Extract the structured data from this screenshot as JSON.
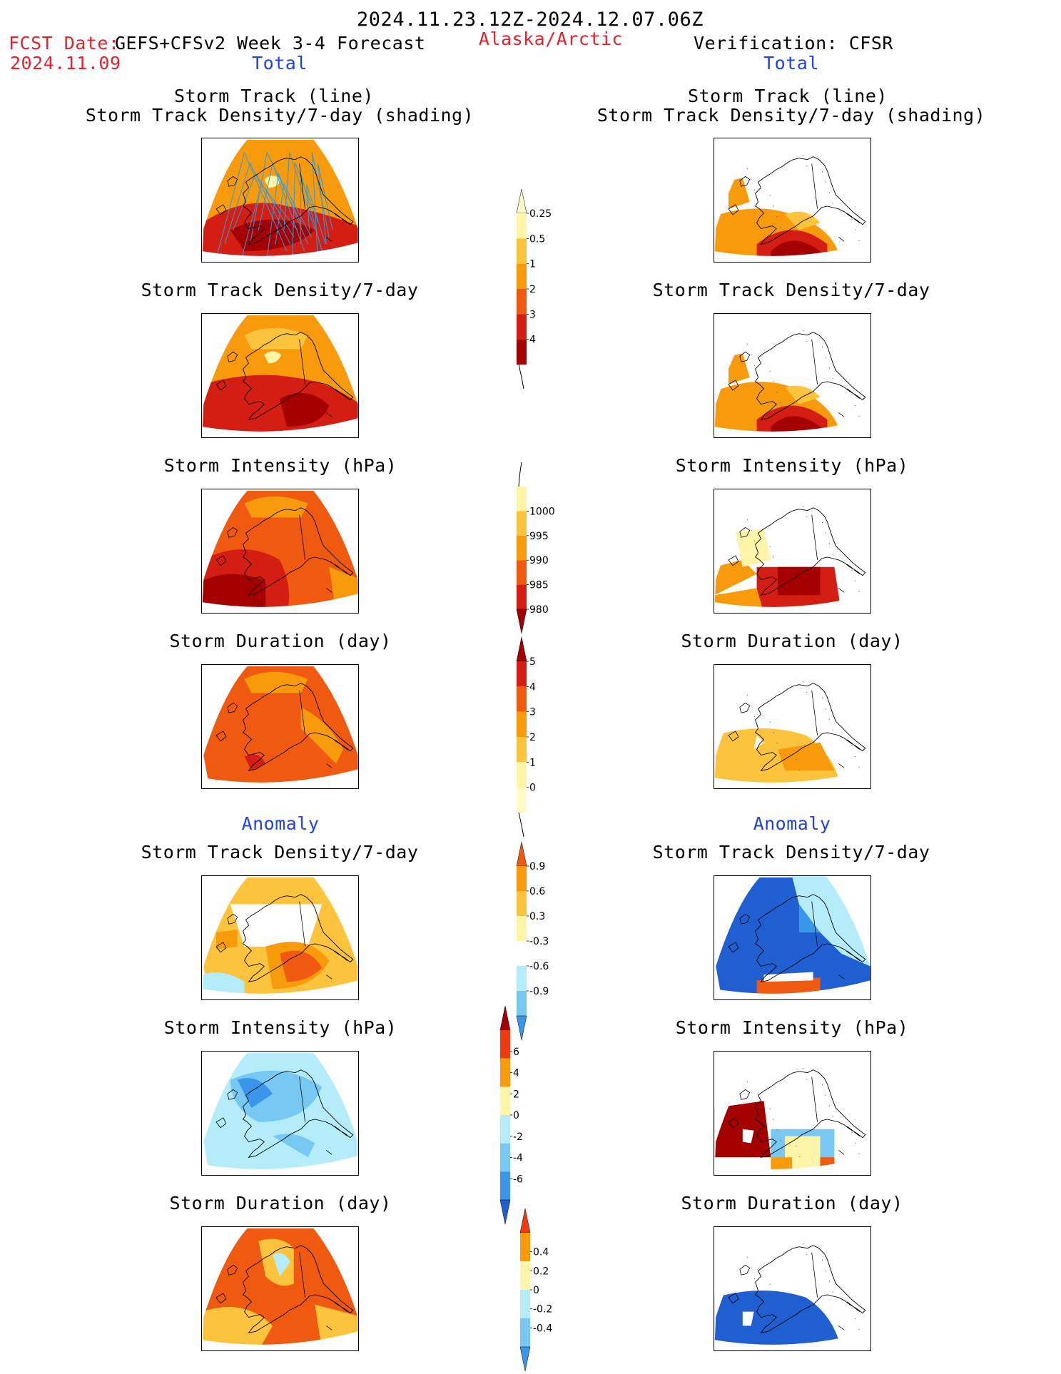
{
  "header": {
    "date_range": "2024.11.23.12Z-2024.12.07.06Z",
    "fcst_label": "FCST Date:",
    "fcst_model": "GEFS+CFSv2 Week 3-4 Forecast",
    "fcst_date": "2024.11.09",
    "region": "Alaska/Arctic",
    "verification": "Verification: CFSR"
  },
  "sections": {
    "total": "Total",
    "anomaly": "Anomaly"
  },
  "panel_titles": {
    "track_line": "Storm Track (line)",
    "track_shading": "Storm Track Density/7-day (shading)",
    "density": "Storm Track Density/7-day",
    "intensity": "Storm Intensity (hPa)",
    "duration": "Storm Duration (day)"
  },
  "colors": {
    "darkred": "#a50000",
    "red": "#d41e14",
    "redorange": "#f05a10",
    "orange": "#f79a0c",
    "lightorange": "#fbc43c",
    "yellow": "#fff5a8",
    "white": "#ffffff",
    "lightblue": "#b4ecfa",
    "skyblue": "#78c8f4",
    "midblue": "#3a96e8",
    "blue": "#1f5fd2",
    "track": "#2f9be0"
  },
  "chart_data": [
    {
      "type": "heatmap",
      "id": "colorbar-track-density-total",
      "levels": [
        0.25,
        0.5,
        1,
        2,
        3,
        4
      ],
      "colors": [
        "#fffcc8",
        "#fff5a8",
        "#fbc43c",
        "#f79a0c",
        "#f05a10",
        "#d41e14",
        "#a50000"
      ],
      "tick_labels": [
        "0.25",
        "0.5",
        "1",
        "2",
        "3",
        "4"
      ]
    },
    {
      "type": "heatmap",
      "id": "colorbar-intensity-total",
      "levels": [
        1000,
        995,
        990,
        985,
        980
      ],
      "colors": [
        "#fff5a8",
        "#fbc43c",
        "#f79a0c",
        "#f05a10",
        "#d41e14",
        "#a50000"
      ],
      "tick_labels": [
        "1000",
        "995",
        "990",
        "985",
        "980"
      ]
    },
    {
      "type": "heatmap",
      "id": "colorbar-duration-total",
      "levels": [
        5,
        4,
        3,
        2,
        1,
        0
      ],
      "colors": [
        "#a50000",
        "#d41e14",
        "#f05a10",
        "#f79a0c",
        "#fbc43c",
        "#fff5a8",
        "#fffcc8"
      ],
      "tick_labels": [
        "5",
        "4",
        "3",
        "2",
        "1",
        "0"
      ]
    },
    {
      "type": "heatmap",
      "id": "colorbar-density-anomaly",
      "levels": [
        0.9,
        0.6,
        0.3,
        -0.3,
        -0.6,
        -0.9
      ],
      "colors": [
        "#f05a10",
        "#f79a0c",
        "#fbc43c",
        "#fff5a8",
        "#ffffff",
        "#b4ecfa",
        "#78c8f4",
        "#3a96e8"
      ],
      "tick_labels": [
        "0.9",
        "0.6",
        "0.3",
        "-0.3",
        "-0.6",
        "-0.9"
      ]
    },
    {
      "type": "heatmap",
      "id": "colorbar-intensity-anomaly",
      "levels": [
        6,
        4,
        2,
        0,
        -2,
        -4,
        -6
      ],
      "colors": [
        "#a50000",
        "#f03a14",
        "#f79a0c",
        "#fff5a8",
        "#b4ecfa",
        "#78c8f4",
        "#3a96e8",
        "#1f5fd2"
      ],
      "tick_labels": [
        "6",
        "4",
        "2",
        "0",
        "-2",
        "-4",
        "-6"
      ]
    },
    {
      "type": "heatmap",
      "id": "colorbar-duration-anomaly",
      "levels": [
        0.4,
        0.2,
        0,
        -0.2,
        -0.4
      ],
      "colors": [
        "#f03a14",
        "#f79a0c",
        "#fff5a8",
        "#b4ecfa",
        "#78c8f4",
        "#3a96e8"
      ],
      "tick_labels": [
        "0.4",
        "0.2",
        "0",
        "-0.2",
        "-0.4"
      ]
    }
  ]
}
